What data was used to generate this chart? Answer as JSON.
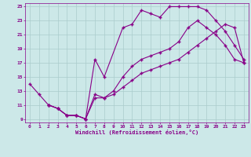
{
  "xlabel": "Windchill (Refroidissement éolien,°C)",
  "bg_color": "#cce8e8",
  "grid_color": "#aacccc",
  "line_color": "#880088",
  "xlim": [
    -0.5,
    23.5
  ],
  "ylim": [
    8.5,
    25.5
  ],
  "xticks": [
    0,
    1,
    2,
    3,
    4,
    5,
    6,
    7,
    8,
    9,
    10,
    11,
    12,
    13,
    14,
    15,
    16,
    17,
    18,
    19,
    20,
    21,
    22,
    23
  ],
  "yticks": [
    9,
    11,
    13,
    15,
    17,
    19,
    21,
    23,
    25
  ],
  "series1_x": [
    0,
    1,
    2,
    3,
    4,
    5,
    6,
    7,
    8,
    9,
    10,
    11,
    12,
    13,
    14,
    15,
    16,
    17,
    18,
    19,
    20,
    21,
    22,
    23
  ],
  "series1_y": [
    14.0,
    12.5,
    11.0,
    10.5,
    9.5,
    9.5,
    9.0,
    12.5,
    12.0,
    13.0,
    15.0,
    16.5,
    17.5,
    18.0,
    18.5,
    19.0,
    20.0,
    22.0,
    23.0,
    22.0,
    21.0,
    19.5,
    17.5,
    17.0
  ],
  "series2_x": [
    2,
    3,
    4,
    5,
    6,
    7,
    8,
    10,
    11,
    12,
    13,
    14,
    15,
    16,
    17,
    18,
    19,
    20,
    21,
    22,
    23
  ],
  "series2_y": [
    11.0,
    10.5,
    9.5,
    9.5,
    9.0,
    17.5,
    15.0,
    22.0,
    22.5,
    24.5,
    24.0,
    23.5,
    25.0,
    25.0,
    25.0,
    25.0,
    24.5,
    23.0,
    21.5,
    19.5,
    17.5
  ],
  "series3_x": [
    2,
    3,
    4,
    5,
    6,
    7,
    8,
    9,
    10,
    11,
    12,
    13,
    14,
    15,
    16,
    17,
    18,
    19,
    20,
    21,
    22,
    23
  ],
  "series3_y": [
    11.0,
    10.5,
    9.5,
    9.5,
    9.0,
    12.0,
    12.0,
    12.5,
    13.5,
    14.5,
    15.5,
    16.0,
    16.5,
    17.0,
    17.5,
    18.5,
    19.5,
    20.5,
    21.5,
    22.5,
    22.0,
    17.0
  ]
}
